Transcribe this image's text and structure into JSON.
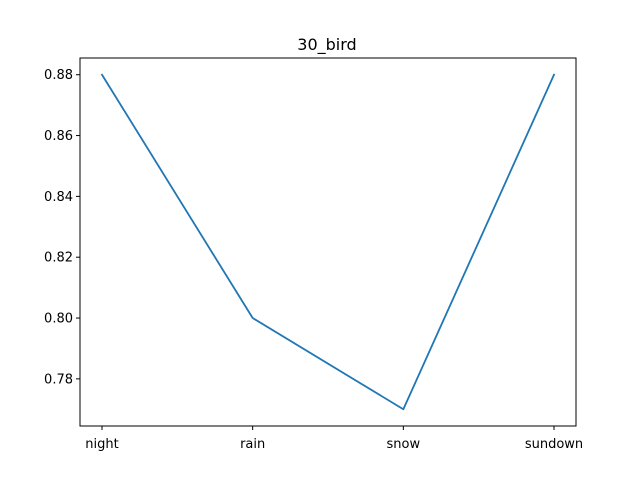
{
  "chart_data": {
    "type": "line",
    "title": "30_bird",
    "xlabel": "",
    "ylabel": "",
    "categories": [
      "night",
      "rain",
      "snow",
      "sundown"
    ],
    "series": [
      {
        "values": [
          0.88,
          0.8,
          0.77,
          0.88
        ],
        "color": "#1f77b4"
      }
    ],
    "ylim": [
      0.7645,
      0.8855
    ],
    "yticks": [
      0.78,
      0.8,
      0.82,
      0.84,
      0.86,
      0.88
    ],
    "ytick_labels": [
      "0.78",
      "0.80",
      "0.82",
      "0.84",
      "0.86",
      "0.88"
    ],
    "grid": false,
    "legend": "none"
  }
}
